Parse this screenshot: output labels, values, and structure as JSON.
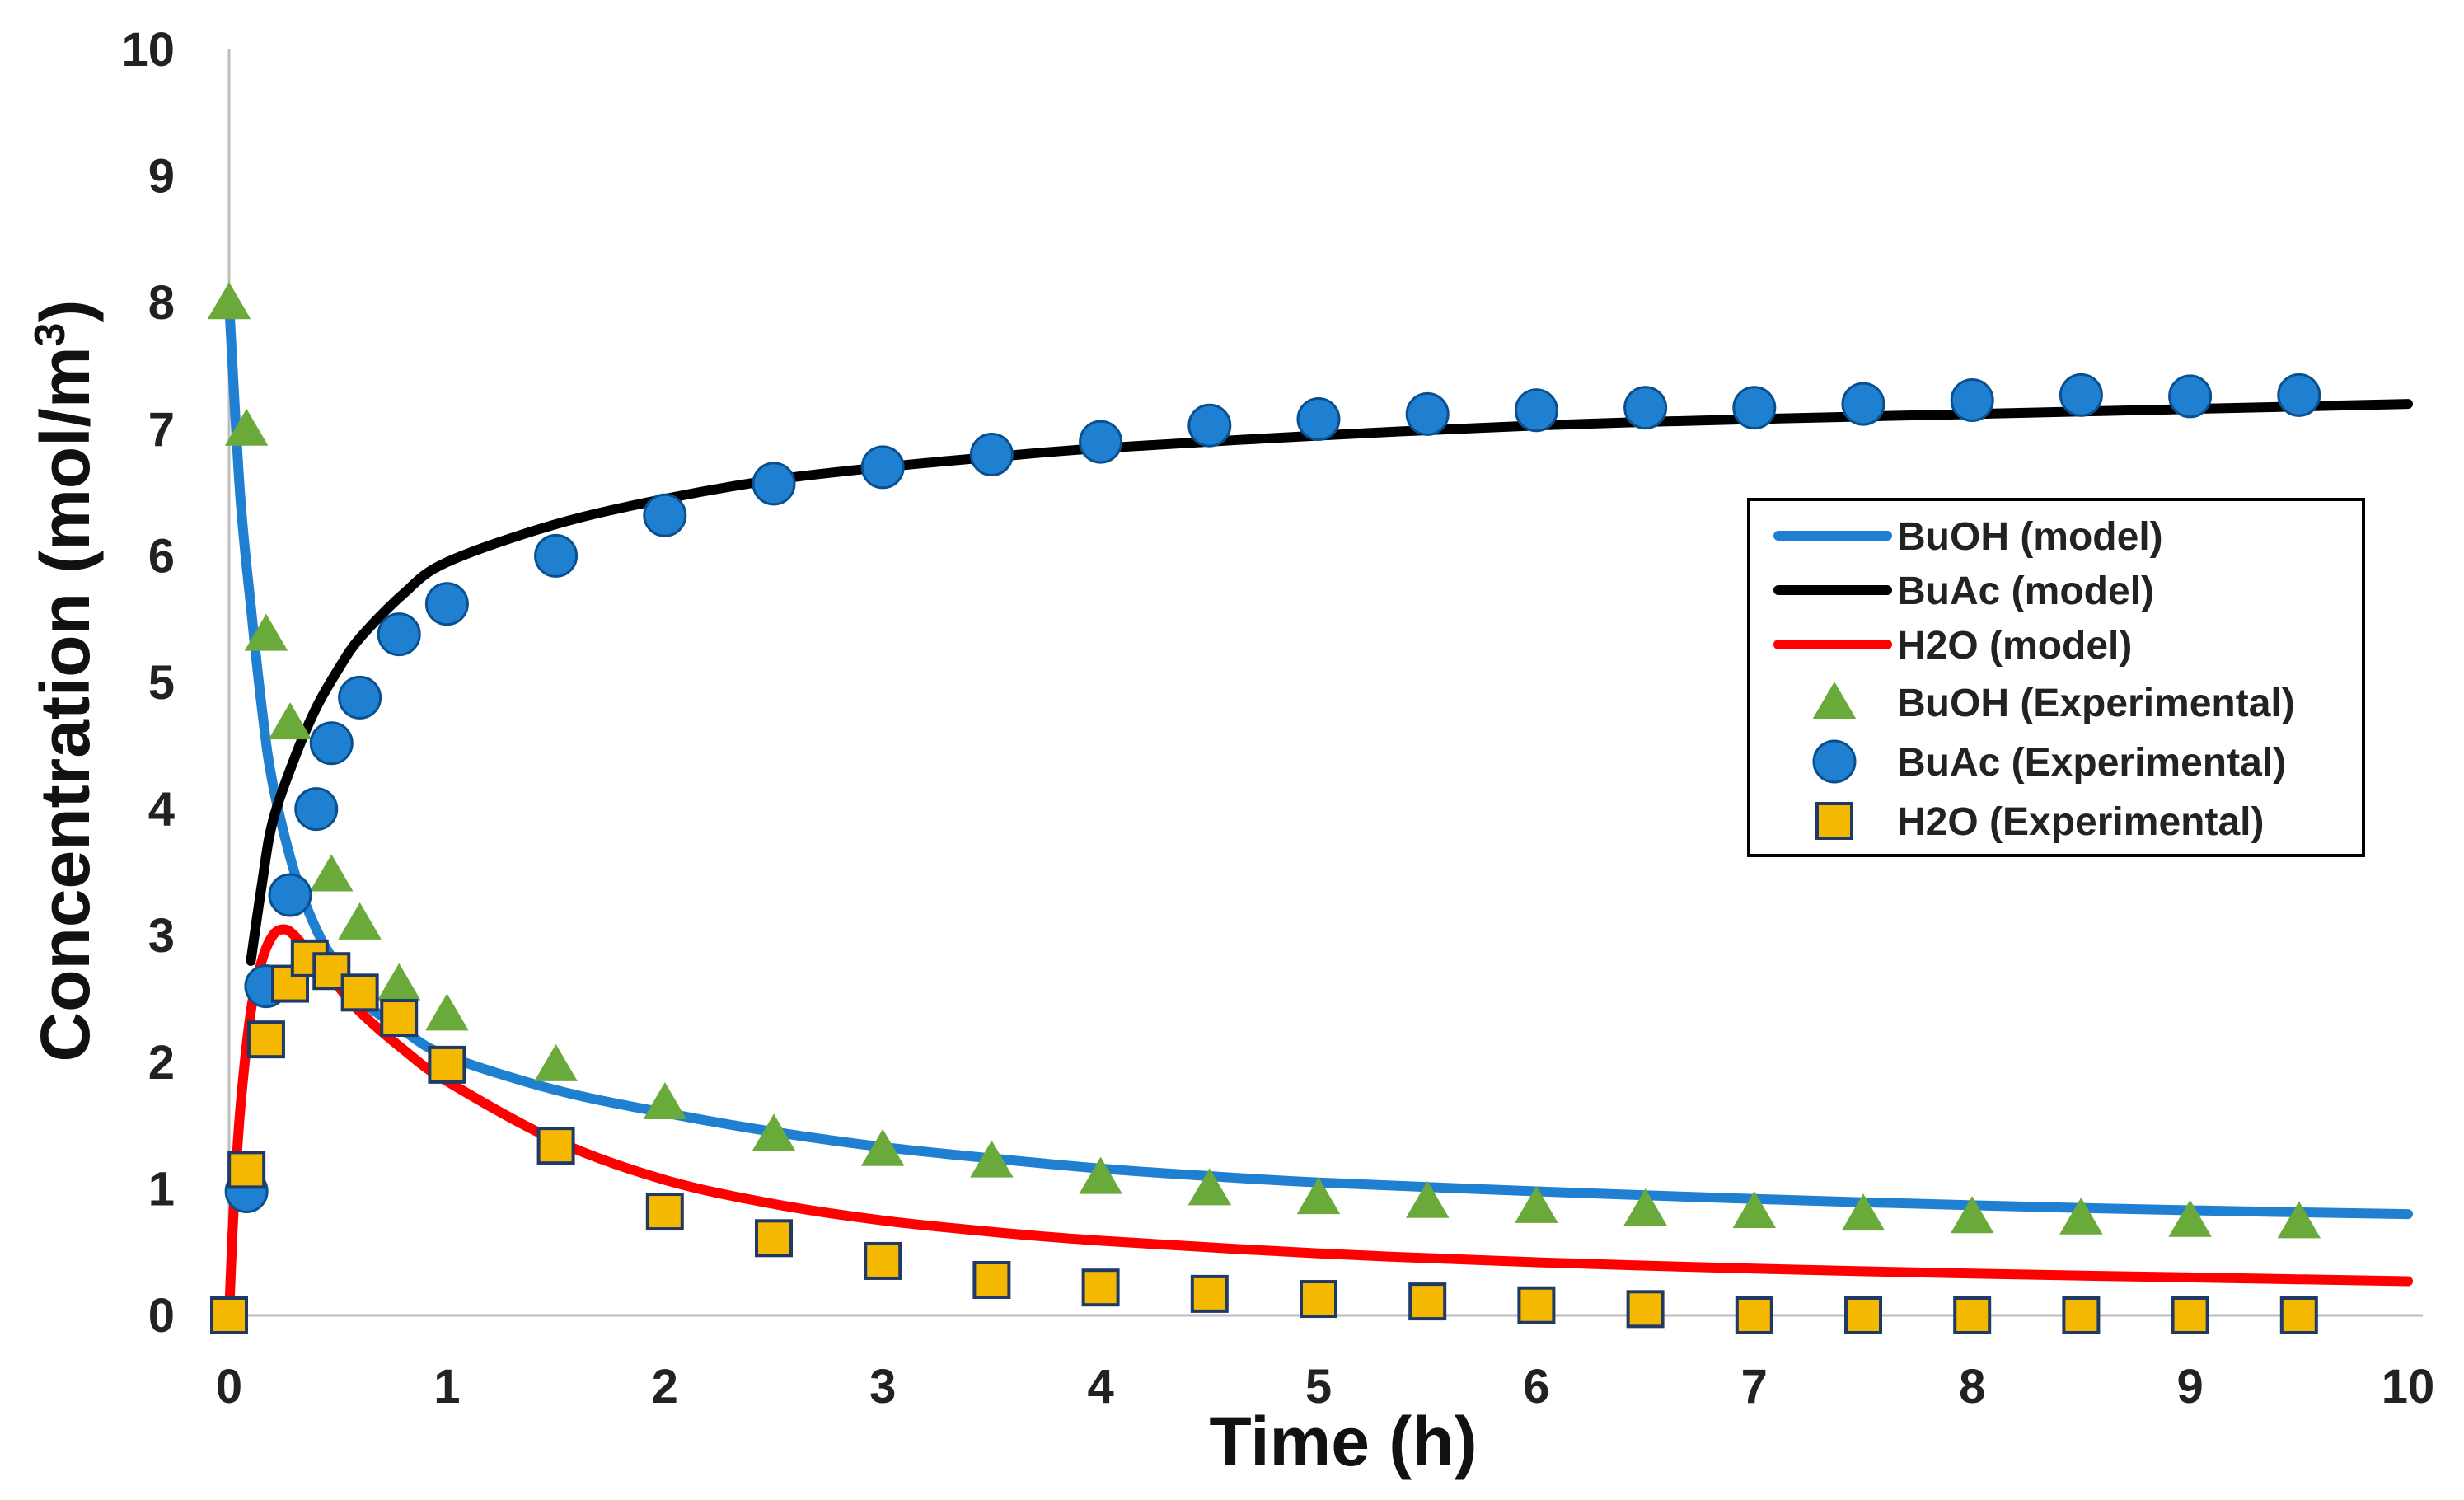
{
  "chart_data": {
    "type": "line",
    "title": "",
    "xlabel": "Time (h)",
    "ylabel": "Concentration (mol/m",
    "ylabel_sup": "3",
    "ylabel_close": ")",
    "xlim": [
      0,
      10
    ],
    "ylim": [
      0,
      10
    ],
    "xticks": [
      "0",
      "1",
      "2",
      "3",
      "4",
      "5",
      "6",
      "7",
      "8",
      "9",
      "10"
    ],
    "yticks": [
      "0",
      "1",
      "2",
      "3",
      "4",
      "5",
      "6",
      "7",
      "8",
      "9",
      "10"
    ],
    "grid": false,
    "legend_position": "right",
    "series": [
      {
        "name": "BuOH (model)",
        "kind": "line",
        "color": "#1f7fd0",
        "x": [
          0,
          0.05,
          0.1,
          0.15,
          0.2,
          0.3,
          0.4,
          0.5,
          0.6,
          0.8,
          1.0,
          1.5,
          2.0,
          2.5,
          3.0,
          3.5,
          4.0,
          4.5,
          5.0,
          6.0,
          7.0,
          8.0,
          9.0,
          10.0
        ],
        "y": [
          8.0,
          6.5,
          5.6,
          4.8,
          4.2,
          3.5,
          3.05,
          2.75,
          2.5,
          2.25,
          2.05,
          1.78,
          1.6,
          1.45,
          1.33,
          1.24,
          1.16,
          1.1,
          1.05,
          0.98,
          0.92,
          0.87,
          0.83,
          0.8
        ]
      },
      {
        "name": "BuAc (model)",
        "kind": "line",
        "color": "#000000",
        "x": [
          0.1,
          0.15,
          0.2,
          0.3,
          0.4,
          0.5,
          0.6,
          0.8,
          1.0,
          1.5,
          2.0,
          2.5,
          3.0,
          3.5,
          4.0,
          5.0,
          6.0,
          7.0,
          8.0,
          9.0,
          10.0
        ],
        "y": [
          2.8,
          3.4,
          3.9,
          4.4,
          4.8,
          5.1,
          5.35,
          5.7,
          5.95,
          6.25,
          6.45,
          6.6,
          6.7,
          6.78,
          6.85,
          6.95,
          7.03,
          7.08,
          7.12,
          7.16,
          7.2
        ]
      },
      {
        "name": "H2O (model)",
        "kind": "line",
        "color": "#ff0000",
        "x": [
          0,
          0.02,
          0.05,
          0.1,
          0.15,
          0.2,
          0.25,
          0.3,
          0.4,
          0.5,
          0.6,
          0.8,
          1.0,
          1.5,
          2.0,
          2.5,
          3.0,
          3.5,
          4.0,
          5.0,
          6.0,
          7.0,
          8.0,
          9.0,
          10.0
        ],
        "y": [
          0,
          0.8,
          1.6,
          2.4,
          2.8,
          3.0,
          3.05,
          3.0,
          2.8,
          2.6,
          2.4,
          2.1,
          1.85,
          1.38,
          1.07,
          0.88,
          0.75,
          0.66,
          0.59,
          0.49,
          0.42,
          0.37,
          0.33,
          0.3,
          0.27
        ]
      },
      {
        "name": "BuOH (Experimental)",
        "kind": "triangle",
        "color": "#6aaa3a",
        "x": [
          0,
          0.08,
          0.17,
          0.28,
          0.47,
          0.6,
          0.78,
          1.0,
          1.5,
          2.0,
          2.5,
          3.0,
          3.5,
          4.0,
          4.5,
          5.0,
          5.5,
          6.0,
          6.5,
          7.0,
          7.5,
          8.0,
          8.5,
          9.0,
          9.5
        ],
        "y": [
          8.0,
          7.0,
          5.38,
          4.68,
          3.48,
          3.1,
          2.62,
          2.38,
          1.98,
          1.68,
          1.43,
          1.31,
          1.22,
          1.09,
          1.0,
          0.93,
          0.9,
          0.86,
          0.84,
          0.82,
          0.8,
          0.78,
          0.77,
          0.75,
          0.74
        ]
      },
      {
        "name": "BuAc (Experimental)",
        "kind": "circle",
        "color": "#1f7fd0",
        "x": [
          0.08,
          0.17,
          0.28,
          0.4,
          0.47,
          0.6,
          0.78,
          1.0,
          1.5,
          2.0,
          2.5,
          3.0,
          3.5,
          4.0,
          4.5,
          5.0,
          5.5,
          6.0,
          6.5,
          7.0,
          7.5,
          8.0,
          8.5,
          9.0,
          9.5
        ],
        "y": [
          0.98,
          2.6,
          3.32,
          4.0,
          4.52,
          4.88,
          5.38,
          5.62,
          6.0,
          6.32,
          6.57,
          6.7,
          6.8,
          6.9,
          7.03,
          7.08,
          7.12,
          7.15,
          7.17,
          7.17,
          7.2,
          7.23,
          7.27,
          7.26,
          7.27
        ]
      },
      {
        "name": "H2O (Experimental)",
        "kind": "square",
        "color": "#f5b800",
        "x": [
          0,
          0.08,
          0.17,
          0.28,
          0.37,
          0.47,
          0.6,
          0.78,
          1.0,
          1.5,
          2.0,
          2.5,
          3.0,
          3.5,
          4.0,
          4.5,
          5.0,
          5.5,
          6.0,
          6.5,
          7.0,
          7.5,
          8.0,
          8.5,
          9.0,
          9.5
        ],
        "y": [
          0,
          1.15,
          2.18,
          2.62,
          2.82,
          2.72,
          2.55,
          2.35,
          1.98,
          1.34,
          0.82,
          0.61,
          0.43,
          0.28,
          0.22,
          0.17,
          0.13,
          0.11,
          0.08,
          0.05,
          0,
          0,
          0,
          0,
          0,
          0
        ]
      }
    ]
  }
}
